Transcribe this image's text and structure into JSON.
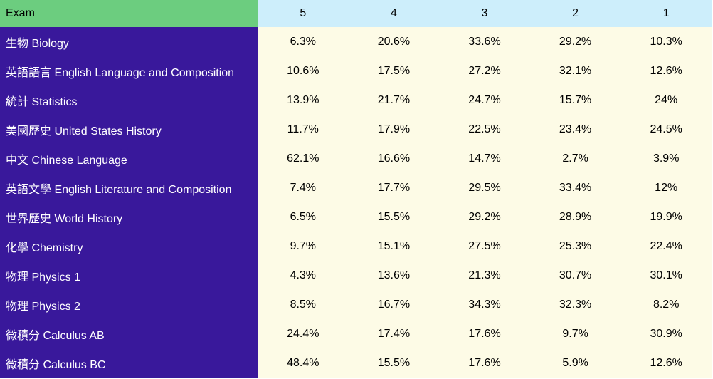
{
  "colors": {
    "header_exam_bg": "#6CCD7F",
    "header_score_bg": "#CDEEFB",
    "exam_col_bg": "#39189B",
    "data_cell_bg": "#FDFBE6",
    "exam_text": "#FFFFFF",
    "data_text": "#000000"
  },
  "table": {
    "exam_header": "Exam",
    "score_headers": [
      "5",
      "4",
      "3",
      "2",
      "1"
    ],
    "rows": [
      {
        "exam": "生物 Biology",
        "values": [
          "6.3%",
          "20.6%",
          "33.6%",
          "29.2%",
          "10.3%"
        ]
      },
      {
        "exam": "英語語言 English Language and Composition",
        "values": [
          "10.6%",
          "17.5%",
          "27.2%",
          "32.1%",
          "12.6%"
        ]
      },
      {
        "exam": "統計 Statistics",
        "values": [
          "13.9%",
          "21.7%",
          "24.7%",
          "15.7%",
          "24%"
        ]
      },
      {
        "exam": "美國歷史 United States History",
        "values": [
          "11.7%",
          "17.9%",
          "22.5%",
          "23.4%",
          "24.5%"
        ]
      },
      {
        "exam": "中文 Chinese Language",
        "values": [
          "62.1%",
          "16.6%",
          "14.7%",
          "2.7%",
          "3.9%"
        ]
      },
      {
        "exam": "英語文學 English Literature and Composition",
        "values": [
          "7.4%",
          "17.7%",
          "29.5%",
          "33.4%",
          "12%"
        ]
      },
      {
        "exam": "世界歷史 World History",
        "values": [
          "6.5%",
          "15.5%",
          "29.2%",
          "28.9%",
          "19.9%"
        ]
      },
      {
        "exam": "化學 Chemistry",
        "values": [
          "9.7%",
          "15.1%",
          "27.5%",
          "25.3%",
          "22.4%"
        ]
      },
      {
        "exam": "物理 Physics 1",
        "values": [
          "4.3%",
          "13.6%",
          "21.3%",
          "30.7%",
          "30.1%"
        ]
      },
      {
        "exam": "物理 Physics 2",
        "values": [
          "8.5%",
          "16.7%",
          "34.3%",
          "32.3%",
          "8.2%"
        ]
      },
      {
        "exam": "微積分 Calculus AB",
        "values": [
          "24.4%",
          "17.4%",
          "17.6%",
          "9.7%",
          "30.9%"
        ]
      },
      {
        "exam": "微積分 Calculus BC",
        "values": [
          "48.4%",
          "15.5%",
          "17.6%",
          "5.9%",
          "12.6%"
        ]
      }
    ]
  },
  "chart_data": {
    "type": "table",
    "columns": [
      "Exam",
      "5",
      "4",
      "3",
      "2",
      "1"
    ],
    "units": "percent of test takers per score",
    "rows": [
      [
        "生物 Biology",
        6.3,
        20.6,
        33.6,
        29.2,
        10.3
      ],
      [
        "英語語言 English Language and Composition",
        10.6,
        17.5,
        27.2,
        32.1,
        12.6
      ],
      [
        "統計 Statistics",
        13.9,
        21.7,
        24.7,
        15.7,
        24
      ],
      [
        "美國歷史 United States History",
        11.7,
        17.9,
        22.5,
        23.4,
        24.5
      ],
      [
        "中文 Chinese Language",
        62.1,
        16.6,
        14.7,
        2.7,
        3.9
      ],
      [
        "英語文學 English Literature and Composition",
        7.4,
        17.7,
        29.5,
        33.4,
        12
      ],
      [
        "世界歷史 World History",
        6.5,
        15.5,
        29.2,
        28.9,
        19.9
      ],
      [
        "化學 Chemistry",
        9.7,
        15.1,
        27.5,
        25.3,
        22.4
      ],
      [
        "物理 Physics 1",
        4.3,
        13.6,
        21.3,
        30.7,
        30.1
      ],
      [
        "物理 Physics 2",
        8.5,
        16.7,
        34.3,
        32.3,
        8.2
      ],
      [
        "微積分 Calculus AB",
        24.4,
        17.4,
        17.6,
        9.7,
        30.9
      ],
      [
        "微積分 Calculus BC",
        48.4,
        15.5,
        17.6,
        5.9,
        12.6
      ]
    ]
  }
}
